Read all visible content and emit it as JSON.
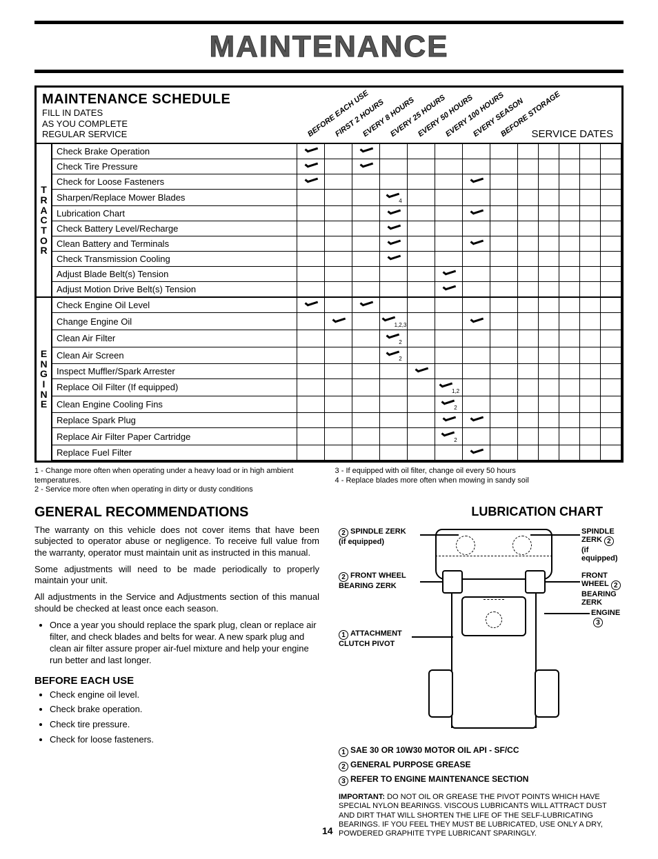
{
  "page_title": "MAINTENANCE",
  "schedule": {
    "title": "MAINTENANCE SCHEDULE",
    "subtitle_l1": "FILL IN DATES",
    "subtitle_l2": "AS YOU COMPLETE",
    "subtitle_l3": "REGULAR SERVICE",
    "columns": [
      "BEFORE EACH USE",
      "FIRST 2 HOURS",
      "EVERY 8 HOURS",
      "EVERY 25 HOURS",
      "EVERY 50 HOURS",
      "EVERY 100 HOURS",
      "EVERY SEASON",
      "BEFORE STORAGE"
    ],
    "service_dates_label": "SERVICE DATES",
    "cat_tractor": "TRACTOR",
    "cat_engine": "ENGINE",
    "tractor_rows": [
      {
        "label": "Check Brake Operation",
        "c": [
          "✓",
          "",
          "✓",
          "",
          "",
          "",
          "",
          ""
        ]
      },
      {
        "label": "Check Tire Pressure",
        "c": [
          "✓",
          "",
          "✓",
          "",
          "",
          "",
          "",
          ""
        ]
      },
      {
        "label": "Check for Loose Fasteners",
        "c": [
          "✓",
          "",
          "",
          "",
          "",
          "",
          "✓",
          ""
        ]
      },
      {
        "label": "Sharpen/Replace Mower Blades",
        "c": [
          "",
          "",
          "",
          "✓",
          "",
          "",
          "",
          ""
        ],
        "sub": "4"
      },
      {
        "label": "Lubrication Chart",
        "c": [
          "",
          "",
          "",
          "✓",
          "",
          "",
          "✓",
          ""
        ]
      },
      {
        "label": "Check Battery Level/Recharge",
        "c": [
          "",
          "",
          "",
          "✓",
          "",
          "",
          "",
          ""
        ]
      },
      {
        "label": "Clean Battery and Terminals",
        "c": [
          "",
          "",
          "",
          "✓",
          "",
          "",
          "✓",
          ""
        ]
      },
      {
        "label": "Check Transmission Cooling",
        "c": [
          "",
          "",
          "",
          "✓",
          "",
          "",
          "",
          ""
        ]
      },
      {
        "label": "Adjust Blade Belt(s) Tension",
        "c": [
          "",
          "",
          "",
          "",
          "",
          "✓",
          "",
          ""
        ]
      },
      {
        "label": "Adjust Motion Drive Belt(s) Tension",
        "c": [
          "",
          "",
          "",
          "",
          "",
          "✓",
          "",
          ""
        ]
      }
    ],
    "engine_rows": [
      {
        "label": "Check Engine Oil Level",
        "c": [
          "✓",
          "",
          "✓",
          "",
          "",
          "",
          "",
          ""
        ]
      },
      {
        "label": "Change Engine Oil",
        "c": [
          "",
          "✓",
          "",
          "✓",
          "",
          "",
          "✓",
          ""
        ],
        "sub": "1,2,3"
      },
      {
        "label": "Clean Air Filter",
        "c": [
          "",
          "",
          "",
          "✓",
          "",
          "",
          "",
          ""
        ],
        "sub": "2"
      },
      {
        "label": "Clean Air Screen",
        "c": [
          "",
          "",
          "",
          "✓",
          "",
          "",
          "",
          ""
        ],
        "sub": "2"
      },
      {
        "label": "Inspect Muffler/Spark Arrester",
        "c": [
          "",
          "",
          "",
          "",
          "✓",
          "",
          "",
          ""
        ]
      },
      {
        "label": "Replace Oil Filter (If equipped)",
        "c": [
          "",
          "",
          "",
          "",
          "",
          "✓",
          "",
          ""
        ],
        "sub": "1,2"
      },
      {
        "label": "Clean Engine Cooling Fins",
        "c": [
          "",
          "",
          "",
          "",
          "",
          "✓",
          "",
          ""
        ],
        "sub": "2"
      },
      {
        "label": "Replace Spark Plug",
        "c": [
          "",
          "",
          "",
          "",
          "",
          "✓",
          "✓",
          ""
        ]
      },
      {
        "label": "Replace Air Filter Paper Cartridge",
        "c": [
          "",
          "",
          "",
          "",
          "",
          "✓",
          "",
          ""
        ],
        "sub": "2"
      },
      {
        "label": "Replace Fuel Filter",
        "c": [
          "",
          "",
          "",
          "",
          "",
          "",
          "✓",
          ""
        ]
      }
    ]
  },
  "footnotes": {
    "f1": "1 - Change more often when operating under a heavy load or in high ambient temperatures.",
    "f2": "2 - Service more often when operating in dirty or dusty conditions",
    "f3": "3 - If equipped with oil filter, change oil every 50 hours",
    "f4": "4 - Replace blades more often when mowing in sandy soil"
  },
  "recommendations": {
    "title": "GENERAL RECOMMENDATIONS",
    "p1": "The warranty on this vehicle does not cover items that have been subjected to operator abuse or negligence. To receive full value from the warranty, operator must maintain unit as instructed in this manual.",
    "p2": "Some adjustments will need to be made periodically to properly maintain your unit.",
    "p3": "All adjustments in the Service and Adjustments section of this manual should be checked at least once each season.",
    "b1": "Once a year you should replace the spark plug, clean or replace air filter, and check blades and belts for wear. A new spark plug and clean air filter assure proper air-fuel mixture and help your engine run better and last longer."
  },
  "before": {
    "title": "BEFORE EACH USE",
    "items": [
      "Check engine oil level.",
      "Check brake operation.",
      "Check tire pressure.",
      "Check for loose fasteners."
    ]
  },
  "lubrication": {
    "title": "LUBRICATION CHART",
    "labels": {
      "spindle_l": "SPINDLE ZERK",
      "spindle_l2": "(if equipped)",
      "spindle_r": "SPINDLE ZERK",
      "spindle_r2": "(if equipped)",
      "front_l": "FRONT WHEEL",
      "front_l2": "BEARING ZERK",
      "front_r": "FRONT WHEEL",
      "front_r2": "BEARING ZERK",
      "engine": "ENGINE",
      "pivot_l1": "ATTACHMENT",
      "pivot_l2": "CLUTCH PIVOT"
    },
    "legend": {
      "l1": "SAE 30 OR 10W30 MOTOR OIL API - SF/CC",
      "l2": "GENERAL PURPOSE GREASE",
      "l3": "REFER TO ENGINE MAINTENANCE SECTION"
    },
    "important": "DO NOT OIL OR GREASE THE PIVOT POINTS WHICH HAVE SPECIAL NYLON BEARINGS. VISCOUS LUBRICANTS WILL ATTRACT DUST AND DIRT THAT WILL SHORTEN THE LIFE OF THE SELF-LUBRICATING BEARINGS. IF YOU FEEL THEY MUST BE LUBRICATED, USE ONLY A DRY, POWDERED GRAPHITE TYPE LUBRICANT SPARINGLY.",
    "important_label": "IMPORTANT:"
  },
  "page_num": "14"
}
